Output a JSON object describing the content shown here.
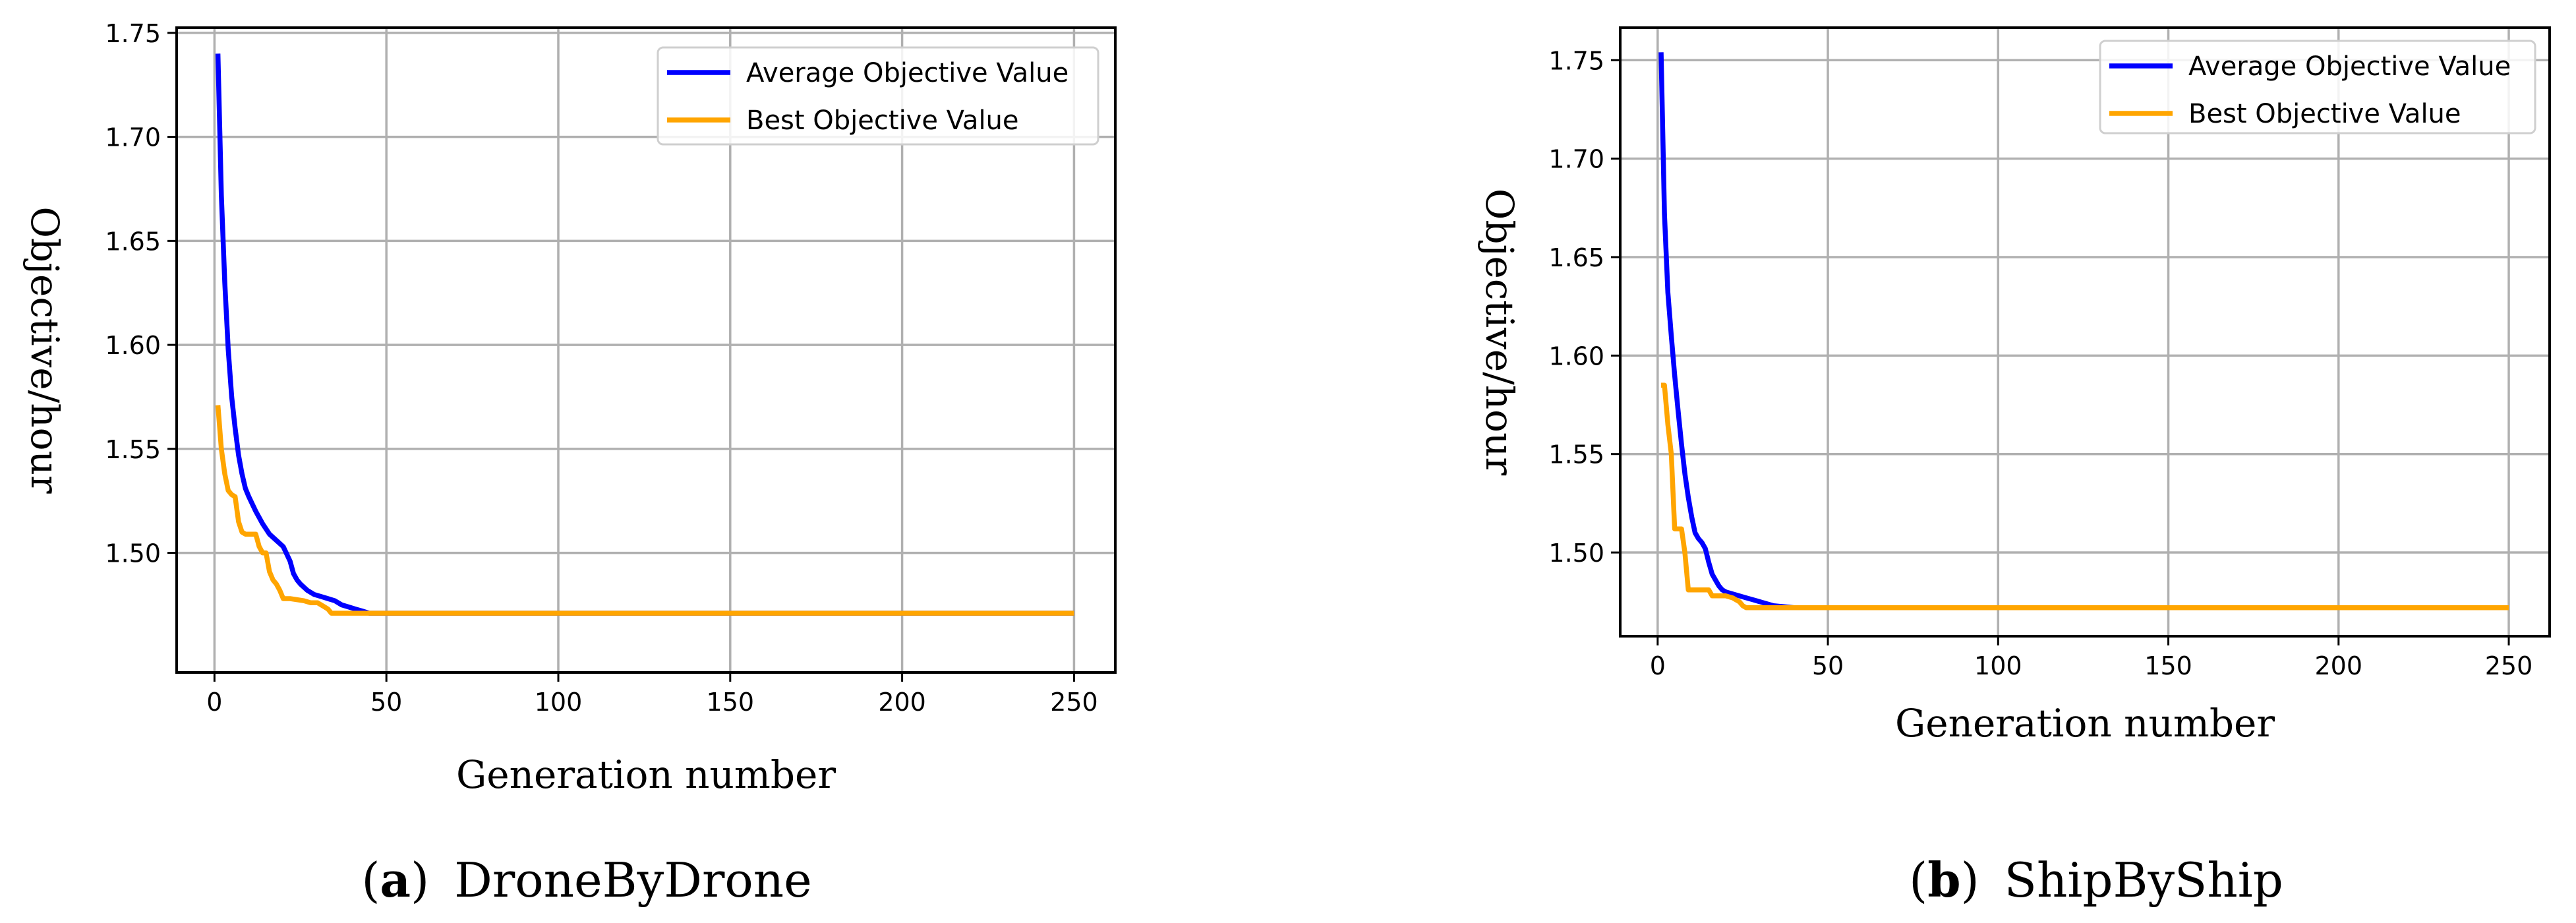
{
  "chart_data": [
    {
      "type": "line",
      "caption_letter": "(a)",
      "caption_title": "DroneByDrone",
      "xlabel": "Generation number",
      "ylabel": "Objective/hour",
      "xlim": [
        -11,
        262
      ],
      "ylim": [
        1.4425,
        1.7525
      ],
      "xticks": [
        0,
        50,
        100,
        150,
        200,
        250
      ],
      "yticks": [
        1.5,
        1.55,
        1.6,
        1.65,
        1.7,
        1.75
      ],
      "ytick_decimals": 2,
      "grid": true,
      "legend_position": "top-right",
      "series": [
        {
          "name": "Average Objective Value",
          "color": "#0000ff",
          "x": [
            1,
            2,
            3,
            4,
            5,
            6,
            7,
            8,
            9,
            10,
            12,
            14,
            16,
            18,
            20,
            22,
            23,
            24,
            25,
            27,
            29,
            31,
            33,
            35,
            37,
            39,
            41,
            43,
            45,
            60,
            100,
            150,
            200,
            250
          ],
          "y": [
            1.74,
            1.672,
            1.63,
            1.598,
            1.575,
            1.56,
            1.547,
            1.538,
            1.531,
            1.527,
            1.52,
            1.514,
            1.509,
            1.506,
            1.503,
            1.496,
            1.49,
            1.487,
            1.485,
            1.482,
            1.48,
            1.479,
            1.478,
            1.477,
            1.475,
            1.474,
            1.473,
            1.472,
            1.471,
            1.471,
            1.471,
            1.471,
            1.471,
            1.471
          ]
        },
        {
          "name": "Best Objective Value",
          "color": "#ffa500",
          "x": [
            1,
            2,
            3,
            4,
            5,
            6,
            7,
            8,
            9,
            12,
            13,
            14,
            15,
            16,
            17,
            18,
            19,
            20,
            22,
            26,
            28,
            30,
            32,
            33,
            34,
            40,
            100,
            150,
            200,
            250
          ],
          "y": [
            1.571,
            1.55,
            1.538,
            1.53,
            1.528,
            1.527,
            1.515,
            1.51,
            1.509,
            1.509,
            1.503,
            1.5,
            1.5,
            1.491,
            1.487,
            1.485,
            1.482,
            1.478,
            1.478,
            1.477,
            1.476,
            1.476,
            1.474,
            1.473,
            1.471,
            1.471,
            1.471,
            1.471,
            1.471,
            1.471
          ]
        }
      ]
    },
    {
      "type": "line",
      "caption_letter": "(b)",
      "caption_title": "ShipByShip",
      "xlabel": "Generation number",
      "ylabel": "Objective/hour",
      "xlim": [
        -11,
        262
      ],
      "ylim": [
        1.4575,
        1.7665
      ],
      "xticks": [
        0,
        50,
        100,
        150,
        200,
        250
      ],
      "yticks": [
        1.5,
        1.55,
        1.6,
        1.65,
        1.7,
        1.75
      ],
      "ytick_decimals": 2,
      "grid": true,
      "legend_position": "top-right",
      "series": [
        {
          "name": "Average Objective Value",
          "color": "#0000ff",
          "x": [
            1,
            2,
            3,
            4,
            5,
            6,
            7,
            8,
            9,
            10,
            11,
            12,
            13,
            14,
            15,
            16,
            17,
            18,
            19,
            20,
            22,
            24,
            26,
            28,
            30,
            32,
            34,
            40,
            100,
            150,
            200,
            250
          ],
          "y": [
            1.754,
            1.672,
            1.632,
            1.61,
            1.59,
            1.572,
            1.555,
            1.54,
            1.528,
            1.518,
            1.51,
            1.507,
            1.505,
            1.502,
            1.495,
            1.489,
            1.486,
            1.483,
            1.481,
            1.48,
            1.479,
            1.478,
            1.477,
            1.476,
            1.475,
            1.474,
            1.473,
            1.472,
            1.472,
            1.472,
            1.472,
            1.472
          ]
        },
        {
          "name": "Best Objective Value",
          "color": "#ffa500",
          "x": [
            1,
            2,
            3,
            4,
            5,
            6,
            7,
            8,
            9,
            10,
            11,
            15,
            16,
            20,
            22,
            24,
            25,
            26,
            30,
            100,
            150,
            200,
            250
          ],
          "y": [
            1.585,
            1.585,
            1.565,
            1.55,
            1.512,
            1.512,
            1.512,
            1.5,
            1.481,
            1.481,
            1.481,
            1.481,
            1.478,
            1.478,
            1.477,
            1.475,
            1.473,
            1.472,
            1.472,
            1.472,
            1.472,
            1.472,
            1.472
          ]
        }
      ]
    }
  ]
}
